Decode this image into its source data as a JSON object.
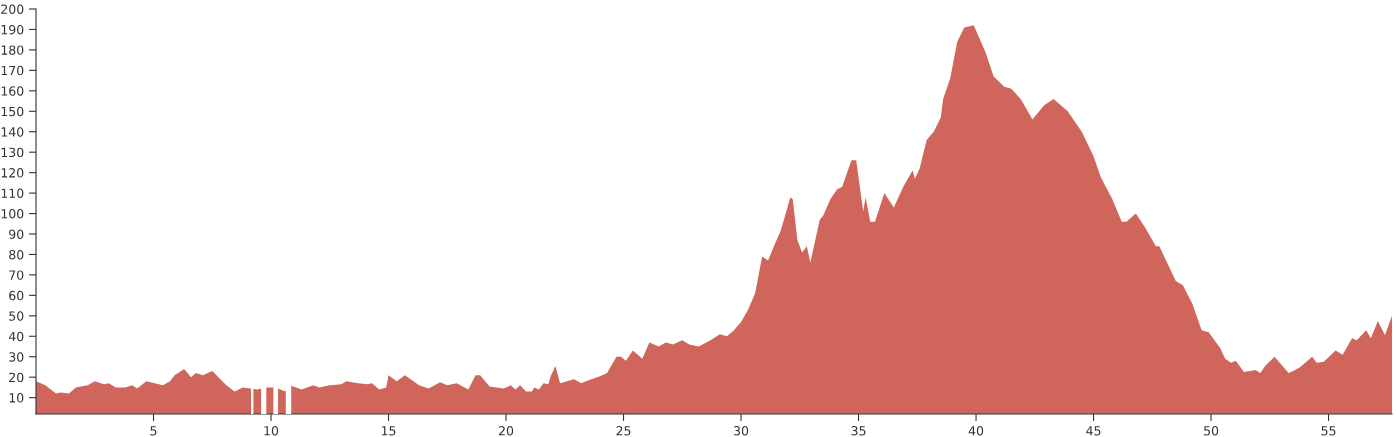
{
  "chart_data": {
    "type": "area",
    "xlim": [
      0,
      57.7
    ],
    "ylim": [
      2,
      200
    ],
    "xticks": [
      5,
      10,
      15,
      20,
      25,
      30,
      35,
      40,
      45,
      50,
      55
    ],
    "yticks": [
      10,
      20,
      30,
      40,
      50,
      60,
      70,
      80,
      90,
      100,
      110,
      120,
      130,
      140,
      150,
      160,
      170,
      180,
      190,
      200
    ],
    "grid": false,
    "legend": false,
    "bands": [
      {
        "axis": "x",
        "from": 9.15,
        "to": 9.25,
        "color": "#ffffff"
      },
      {
        "axis": "x",
        "from": 9.58,
        "to": 9.8,
        "color": "#ffffff"
      },
      {
        "axis": "x",
        "from": 10.1,
        "to": 10.3,
        "color": "#ffffff"
      },
      {
        "axis": "x",
        "from": 10.63,
        "to": 10.86,
        "color": "#ffffff"
      }
    ],
    "series": [
      {
        "color": "#d0655c",
        "x": [
          0,
          0.4,
          0.85,
          1.06,
          1.4,
          1.7,
          2.2,
          2.5,
          2.9,
          3.1,
          3.4,
          3.8,
          4.1,
          4.3,
          4.7,
          5.4,
          5.7,
          5.9,
          6.3,
          6.6,
          6.8,
          7.1,
          7.5,
          8.1,
          8.45,
          8.8,
          9.4,
          9.8,
          10.2,
          10.6,
          10.8,
          11.3,
          11.8,
          12.05,
          12.5,
          13.0,
          13.2,
          13.7,
          14.1,
          14.3,
          14.6,
          14.9,
          15.0,
          15.35,
          15.7,
          16.3,
          16.7,
          17.2,
          17.5,
          17.9,
          18.4,
          18.7,
          18.9,
          19.3,
          19.9,
          20.2,
          20.4,
          20.6,
          20.85,
          21.1,
          21.2,
          21.4,
          21.6,
          21.8,
          21.9,
          22.1,
          22.3,
          22.9,
          23.2,
          23.4,
          24.0,
          24.3,
          24.7,
          24.9,
          25.1,
          25.4,
          25.8,
          26.1,
          26.5,
          26.8,
          27.1,
          27.5,
          27.8,
          28.2,
          28.7,
          29.1,
          29.4,
          29.7,
          30.0,
          30.3,
          30.6,
          30.9,
          31.15,
          31.4,
          31.7,
          32.1,
          32.2,
          32.4,
          32.6,
          32.8,
          32.95,
          33.35,
          33.5,
          33.8,
          34.1,
          34.3,
          34.7,
          34.9,
          35.2,
          35.3,
          35.5,
          35.7,
          36.1,
          36.5,
          36.9,
          37.3,
          37.4,
          37.6,
          37.9,
          38.2,
          38.5,
          38.6,
          38.9,
          39.2,
          39.5,
          39.9,
          40.4,
          40.75,
          41.2,
          41.5,
          41.9,
          42.25,
          42.4,
          42.9,
          43.3,
          43.9,
          44.5,
          45.0,
          45.3,
          45.8,
          46.2,
          46.4,
          46.8,
          47.2,
          47.65,
          47.8,
          48.5,
          48.8,
          49.2,
          49.6,
          49.9,
          50.4,
          50.6,
          50.85,
          51.05,
          51.4,
          51.9,
          52.1,
          52.3,
          52.7,
          53.3,
          53.5,
          53.8,
          54.3,
          54.5,
          54.8,
          55.3,
          55.6,
          56.0,
          56.2,
          56.6,
          56.8,
          57.1,
          57.4,
          57.7
        ],
        "values": [
          18,
          16,
          12,
          12.5,
          12,
          15,
          16,
          18,
          16.5,
          17,
          15,
          15,
          16,
          14.5,
          18,
          16,
          18,
          21,
          24,
          20,
          22,
          21,
          23,
          16,
          13,
          15,
          14,
          15,
          15,
          13,
          16,
          14,
          16,
          15,
          16,
          16.5,
          18,
          17,
          16.5,
          17,
          14,
          15,
          21,
          18,
          21,
          16,
          14.5,
          17.5,
          16,
          17,
          14,
          21,
          21,
          15.5,
          14.5,
          16,
          14,
          16,
          13,
          13,
          15,
          14,
          17,
          16.5,
          20.5,
          25.5,
          17,
          19,
          17,
          18,
          20.5,
          22,
          30,
          30,
          28,
          33,
          29,
          37,
          35,
          37,
          36,
          38,
          36,
          35,
          38,
          41,
          40,
          43,
          47,
          53,
          61,
          79,
          77,
          84,
          92,
          108,
          107,
          87,
          81,
          84,
          76,
          97,
          99,
          107,
          112,
          113,
          126,
          126,
          101,
          108,
          96,
          96,
          110,
          103,
          113,
          121,
          117,
          122,
          136,
          140,
          147,
          156,
          166,
          184,
          191,
          192,
          179,
          167,
          162,
          161,
          156,
          149,
          146,
          153,
          156,
          150,
          140,
          128,
          118,
          107,
          96,
          96,
          100,
          93,
          84,
          84,
          67,
          65,
          56,
          43,
          42,
          34,
          29,
          27,
          28,
          22.5,
          23.5,
          22,
          25.5,
          30,
          22,
          23,
          25,
          30,
          27,
          27.5,
          33,
          31,
          39,
          38,
          43,
          39,
          47.5,
          40.5,
          50
        ]
      }
    ]
  }
}
